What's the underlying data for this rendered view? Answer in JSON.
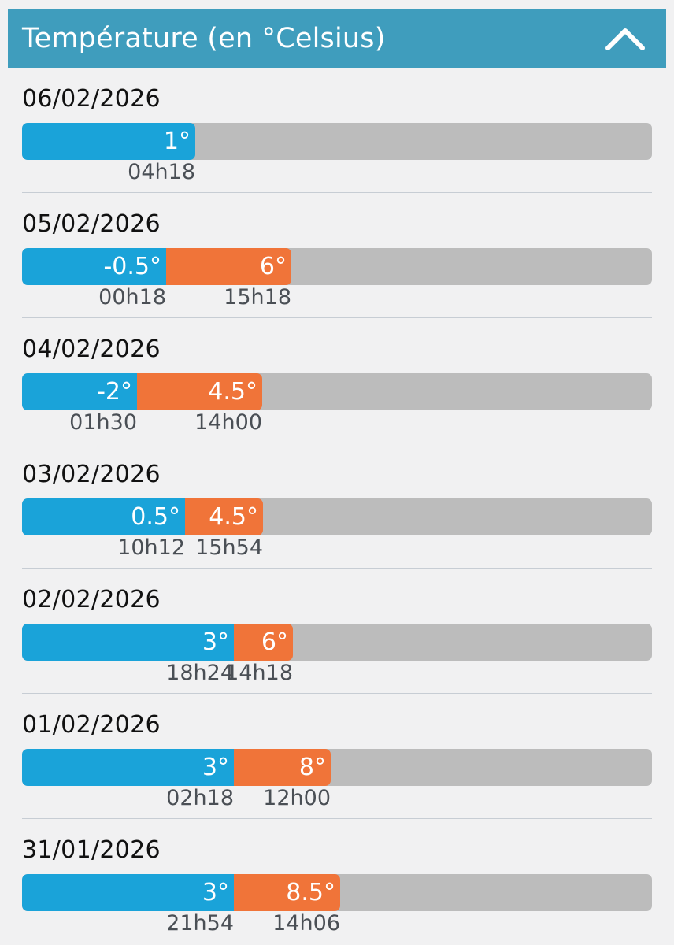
{
  "header": {
    "title": "Température (en °Celsius)",
    "toggle_icon": "chevron-up-icon"
  },
  "colors": {
    "header": "#3f9dbd",
    "min": "#1aa3d9",
    "max": "#f07439",
    "track": "#bcbcbc"
  },
  "days": [
    {
      "date": "06/02/2026",
      "min": {
        "value": 1,
        "label": "1°",
        "time": "04h18"
      }
    },
    {
      "date": "05/02/2026",
      "min": {
        "value": -0.5,
        "label": "-0.5°",
        "time": "00h18"
      },
      "max": {
        "value": 6,
        "label": "6°",
        "time": "15h18"
      }
    },
    {
      "date": "04/02/2026",
      "min": {
        "value": -2,
        "label": "-2°",
        "time": "01h30"
      },
      "max": {
        "value": 4.5,
        "label": "4.5°",
        "time": "14h00"
      }
    },
    {
      "date": "03/02/2026",
      "min": {
        "value": 0.5,
        "label": "0.5°",
        "time": "10h12"
      },
      "max": {
        "value": 4.5,
        "label": "4.5°",
        "time": "15h54"
      }
    },
    {
      "date": "02/02/2026",
      "min": {
        "value": 3,
        "label": "3°",
        "time": "18h24"
      },
      "max": {
        "value": 6,
        "label": "6°",
        "time": "14h18"
      }
    },
    {
      "date": "01/02/2026",
      "min": {
        "value": 3,
        "label": "3°",
        "time": "02h18"
      },
      "max": {
        "value": 8,
        "label": "8°",
        "time": "12h00"
      }
    },
    {
      "date": "31/01/2026",
      "min": {
        "value": 3,
        "label": "3°",
        "time": "21h54"
      },
      "max": {
        "value": 8.5,
        "label": "8.5°",
        "time": "14h06"
      }
    }
  ]
}
